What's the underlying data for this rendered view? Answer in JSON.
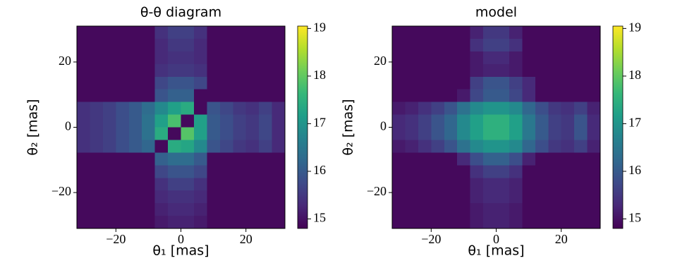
{
  "chart_data": [
    {
      "type": "heatmap",
      "title": "θ-θ diagram",
      "xlabel": "θ₁ [mas]",
      "ylabel": "θ₂ [mas]",
      "colormap": "viridis",
      "xlim": [
        -32,
        32
      ],
      "ylim": [
        -31,
        31
      ],
      "xticks": [
        {
          "value": -20,
          "label": "−20"
        },
        0,
        20
      ],
      "yticks": [
        {
          "value": -20,
          "label": "−20"
        },
        0,
        20
      ],
      "clim": [
        14.8,
        19.05
      ],
      "cticks": [
        15,
        16,
        17,
        18,
        19
      ],
      "z": [
        [
          14.9,
          14.9,
          14.9,
          14.9,
          14.9,
          14.9,
          15.4,
          15.6,
          15.6,
          15.4,
          14.9,
          14.9,
          14.9,
          14.9,
          14.9,
          14.9
        ],
        [
          14.9,
          14.9,
          14.9,
          14.9,
          14.9,
          14.9,
          15.3,
          15.5,
          15.5,
          15.3,
          14.9,
          14.9,
          14.9,
          14.9,
          14.9,
          14.9
        ],
        [
          14.9,
          14.9,
          14.9,
          14.9,
          14.9,
          14.9,
          15.3,
          15.4,
          15.4,
          15.3,
          14.9,
          14.9,
          14.9,
          14.9,
          14.9,
          14.9
        ],
        [
          14.9,
          14.9,
          14.9,
          14.9,
          14.9,
          14.9,
          15.4,
          15.5,
          15.5,
          15.4,
          14.9,
          14.9,
          14.9,
          14.9,
          14.9,
          14.9
        ],
        [
          14.9,
          14.9,
          14.9,
          14.9,
          14.9,
          14.9,
          15.7,
          15.9,
          15.9,
          15.7,
          14.9,
          14.9,
          14.9,
          14.9,
          14.9,
          14.9
        ],
        [
          14.9,
          14.9,
          14.9,
          14.9,
          14.9,
          14.9,
          15.9,
          16.1,
          16.1,
          14.9,
          14.9,
          14.9,
          14.9,
          14.9,
          14.9,
          14.9
        ],
        [
          15.4,
          15.5,
          15.6,
          15.8,
          16.0,
          16.3,
          16.8,
          17.2,
          17.4,
          14.9,
          15.9,
          15.7,
          15.5,
          15.4,
          15.6,
          15.3
        ],
        [
          15.4,
          15.5,
          15.6,
          15.8,
          16.0,
          16.4,
          17.2,
          17.8,
          14.9,
          17.2,
          16.0,
          15.8,
          15.6,
          15.5,
          15.7,
          15.3
        ],
        [
          15.4,
          15.5,
          15.6,
          15.8,
          16.0,
          16.4,
          17.4,
          14.9,
          17.9,
          17.2,
          16.0,
          15.8,
          15.6,
          15.5,
          15.7,
          15.3
        ],
        [
          15.4,
          15.5,
          15.6,
          15.8,
          16.0,
          16.2,
          14.9,
          17.4,
          17.3,
          16.8,
          15.9,
          15.7,
          15.5,
          15.4,
          15.6,
          15.3
        ],
        [
          14.9,
          14.9,
          14.9,
          14.9,
          14.9,
          14.9,
          16.1,
          16.3,
          16.3,
          16.0,
          14.9,
          14.9,
          14.9,
          14.9,
          14.9,
          14.9
        ],
        [
          14.9,
          14.9,
          14.9,
          14.9,
          14.9,
          14.9,
          15.7,
          15.9,
          15.9,
          15.7,
          14.9,
          14.9,
          14.9,
          14.9,
          14.9,
          14.9
        ],
        [
          14.9,
          14.9,
          14.9,
          14.9,
          14.9,
          14.9,
          15.4,
          15.6,
          15.6,
          15.4,
          14.9,
          14.9,
          14.9,
          14.9,
          14.9,
          14.9
        ],
        [
          14.9,
          14.9,
          14.9,
          14.9,
          14.9,
          14.9,
          15.3,
          15.4,
          15.4,
          15.3,
          14.9,
          14.9,
          14.9,
          14.9,
          14.9,
          14.9
        ],
        [
          14.9,
          14.9,
          14.9,
          14.9,
          14.9,
          14.9,
          15.2,
          15.3,
          15.3,
          15.2,
          14.9,
          14.9,
          14.9,
          14.9,
          14.9,
          14.9
        ],
        [
          14.9,
          14.9,
          14.9,
          14.9,
          14.9,
          14.9,
          15.1,
          15.2,
          15.2,
          15.1,
          14.9,
          14.9,
          14.9,
          14.9,
          14.9,
          14.9
        ]
      ]
    },
    {
      "type": "heatmap",
      "title": "model",
      "xlabel": "θ₁ [mas]",
      "ylabel": "θ₂ [mas]",
      "colormap": "viridis",
      "xlim": [
        -32,
        32
      ],
      "ylim": [
        -31,
        31
      ],
      "xticks": [
        {
          "value": -20,
          "label": "−20"
        },
        0,
        20
      ],
      "yticks": [
        {
          "value": -20,
          "label": "−20"
        },
        0,
        20
      ],
      "clim": [
        14.8,
        19.05
      ],
      "cticks": [
        15,
        16,
        17,
        18,
        19
      ],
      "z": [
        [
          14.9,
          14.9,
          14.9,
          14.9,
          14.9,
          14.9,
          15.2,
          15.5,
          15.5,
          15.2,
          14.9,
          14.9,
          14.9,
          14.9,
          14.9,
          14.9
        ],
        [
          14.9,
          14.9,
          14.9,
          14.9,
          14.9,
          14.9,
          15.4,
          15.6,
          15.6,
          15.4,
          14.9,
          14.9,
          14.9,
          14.9,
          14.9,
          14.9
        ],
        [
          14.9,
          14.9,
          14.9,
          14.9,
          14.9,
          14.9,
          15.1,
          15.3,
          15.3,
          15.1,
          14.9,
          14.9,
          14.9,
          14.9,
          14.9,
          14.9
        ],
        [
          14.9,
          14.9,
          14.9,
          14.9,
          14.9,
          14.9,
          15.1,
          15.2,
          15.2,
          15.1,
          14.9,
          14.9,
          14.9,
          14.9,
          14.9,
          14.9
        ],
        [
          14.9,
          14.9,
          14.9,
          14.9,
          14.9,
          14.9,
          15.6,
          15.9,
          15.9,
          15.6,
          15.3,
          14.9,
          14.9,
          14.9,
          14.9,
          14.9
        ],
        [
          14.9,
          14.9,
          14.9,
          14.9,
          14.9,
          15.1,
          15.7,
          16.0,
          16.0,
          15.7,
          15.3,
          14.9,
          14.9,
          14.9,
          14.9,
          14.9
        ],
        [
          15.1,
          15.2,
          15.4,
          15.6,
          15.9,
          16.4,
          16.8,
          17.0,
          17.0,
          16.8,
          16.2,
          15.8,
          15.5,
          15.4,
          15.6,
          15.2
        ],
        [
          15.3,
          15.4,
          15.6,
          15.9,
          16.2,
          16.8,
          17.2,
          17.5,
          17.5,
          17.2,
          16.5,
          16.0,
          15.6,
          15.5,
          15.9,
          15.3
        ],
        [
          15.3,
          15.4,
          15.6,
          15.9,
          16.2,
          16.8,
          17.2,
          17.5,
          17.5,
          17.2,
          16.5,
          16.0,
          15.6,
          15.5,
          15.9,
          15.3
        ],
        [
          15.1,
          15.2,
          15.4,
          15.6,
          15.9,
          16.4,
          16.8,
          17.0,
          17.0,
          16.8,
          16.2,
          15.8,
          15.5,
          15.4,
          15.6,
          15.2
        ],
        [
          14.9,
          14.9,
          14.9,
          14.9,
          14.9,
          15.3,
          15.8,
          16.1,
          16.1,
          15.8,
          15.2,
          14.9,
          14.9,
          14.9,
          14.9,
          14.9
        ],
        [
          14.9,
          14.9,
          14.9,
          14.9,
          14.9,
          14.9,
          15.4,
          15.6,
          15.6,
          15.4,
          14.9,
          14.9,
          14.9,
          14.9,
          14.9,
          14.9
        ],
        [
          14.9,
          14.9,
          14.9,
          14.9,
          14.9,
          14.9,
          15.2,
          15.3,
          15.3,
          15.2,
          14.9,
          14.9,
          14.9,
          14.9,
          14.9,
          14.9
        ],
        [
          14.9,
          14.9,
          14.9,
          14.9,
          14.9,
          14.9,
          15.2,
          15.3,
          15.3,
          15.2,
          14.9,
          14.9,
          14.9,
          14.9,
          14.9,
          14.9
        ],
        [
          14.9,
          14.9,
          14.9,
          14.9,
          14.9,
          14.9,
          15.1,
          15.2,
          15.2,
          15.1,
          14.9,
          14.9,
          14.9,
          14.9,
          14.9,
          14.9
        ],
        [
          14.9,
          14.9,
          14.9,
          14.9,
          14.9,
          14.9,
          15.1,
          15.2,
          15.2,
          15.1,
          14.9,
          14.9,
          14.9,
          14.9,
          14.9,
          14.9
        ]
      ]
    }
  ]
}
